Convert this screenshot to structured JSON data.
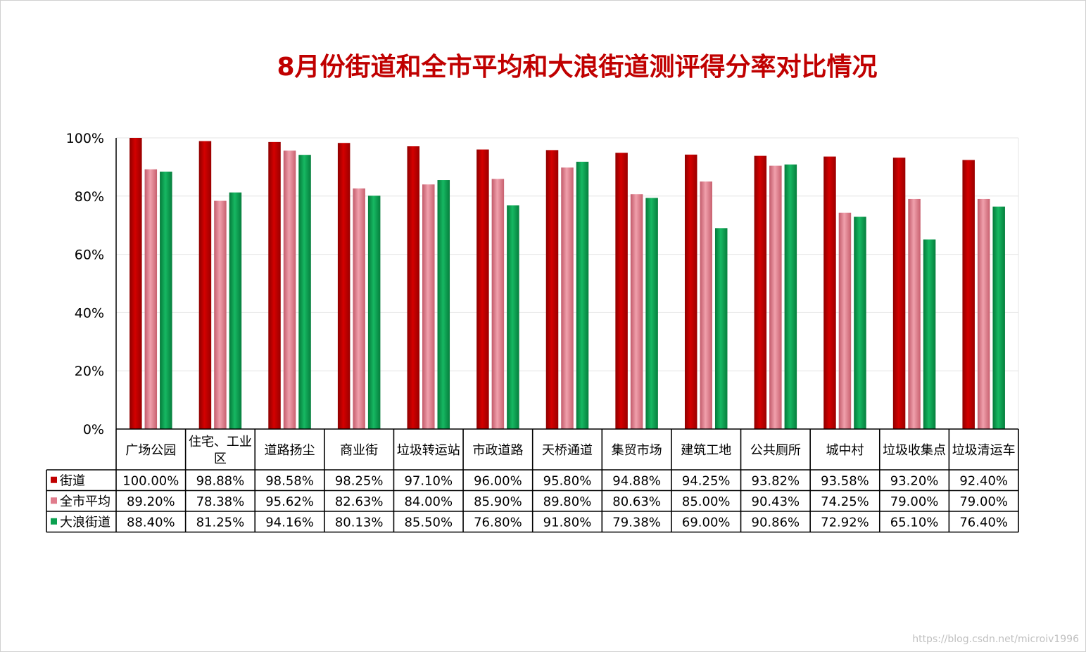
{
  "title": "8月份街道和全市平均和大浪街道测评得分率对比情况",
  "watermark": "https://blog.csdn.net/microiv1996",
  "chart_data": {
    "type": "bar",
    "title": "8月份街道和全市平均和大浪街道测评得分率对比情况",
    "categories": [
      "广场公园",
      "住宅、工业区",
      "道路扬尘",
      "商业街",
      "垃圾转运站",
      "市政道路",
      "天桥通道",
      "集贸市场",
      "建筑工地",
      "公共厕所",
      "城中村",
      "垃圾收集点",
      "垃圾清运车"
    ],
    "ylim": [
      0,
      100
    ],
    "yticks": [
      "0%",
      "20%",
      "40%",
      "60%",
      "80%",
      "100%"
    ],
    "grid": true,
    "legend": "data-table",
    "series": [
      {
        "name": "街道",
        "color": "#c00000",
        "values": [
          100.0,
          98.88,
          98.58,
          98.25,
          97.1,
          96.0,
          95.8,
          94.88,
          94.25,
          93.82,
          93.58,
          93.2,
          92.4
        ],
        "labels": [
          "100.00%",
          "98.88%",
          "98.58%",
          "98.25%",
          "97.10%",
          "96.00%",
          "95.80%",
          "94.88%",
          "94.25%",
          "93.82%",
          "93.58%",
          "93.20%",
          "92.40%"
        ]
      },
      {
        "name": "全市平均",
        "color": "#e07c8c",
        "values": [
          89.2,
          78.38,
          95.62,
          82.63,
          84.0,
          85.9,
          89.8,
          80.63,
          85.0,
          90.43,
          74.25,
          79.0,
          79.0
        ],
        "labels": [
          "89.20%",
          "78.38%",
          "95.62%",
          "82.63%",
          "84.00%",
          "85.90%",
          "89.80%",
          "80.63%",
          "85.00%",
          "90.43%",
          "74.25%",
          "79.00%",
          "79.00%"
        ]
      },
      {
        "name": "大浪街道",
        "color": "#0aa050",
        "values": [
          88.4,
          81.25,
          94.16,
          80.13,
          85.5,
          76.8,
          91.8,
          79.38,
          69.0,
          90.86,
          72.92,
          65.1,
          76.4
        ],
        "labels": [
          "88.40%",
          "81.25%",
          "94.16%",
          "80.13%",
          "85.50%",
          "76.80%",
          "91.80%",
          "79.38%",
          "69.00%",
          "90.86%",
          "72.92%",
          "65.10%",
          "76.40%"
        ]
      }
    ]
  }
}
